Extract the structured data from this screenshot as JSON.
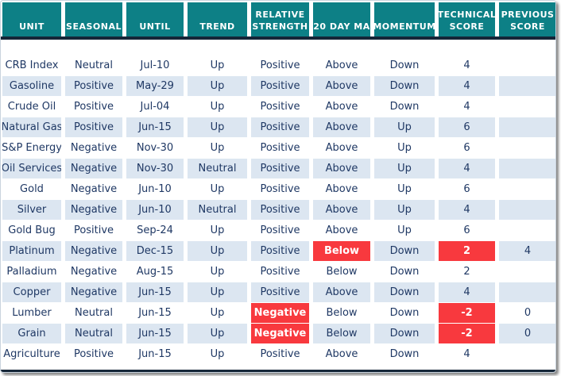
{
  "table": {
    "columns": [
      {
        "key": "unit",
        "label": "UNIT"
      },
      {
        "key": "seasonal",
        "label": "SEASONAL"
      },
      {
        "key": "until",
        "label": "UNTIL"
      },
      {
        "key": "trend",
        "label": "TREND"
      },
      {
        "key": "relative-strength",
        "label": "RELATIVE STRENGTH"
      },
      {
        "key": "20-day-ma",
        "label": "20 DAY MA"
      },
      {
        "key": "momentum",
        "label": "MOMENTUM"
      },
      {
        "key": "technical-score",
        "label": "TECHNICAL SCORE"
      },
      {
        "key": "previous-score",
        "label": "PREVIOUS SCORE"
      }
    ],
    "rows": [
      {
        "cells": [
          "CRB Index",
          "Neutral",
          "Jul-10",
          "Up",
          "Positive",
          "Above",
          "Down",
          "4",
          ""
        ],
        "alerts": []
      },
      {
        "cells": [
          "Gasoline",
          "Positive",
          "May-29",
          "Up",
          "Positive",
          "Above",
          "Down",
          "4",
          ""
        ],
        "alerts": []
      },
      {
        "cells": [
          "Crude Oil",
          "Positive",
          "Jul-04",
          "Up",
          "Positive",
          "Above",
          "Down",
          "4",
          ""
        ],
        "alerts": []
      },
      {
        "cells": [
          "Natural Gas",
          "Positive",
          "Jun-15",
          "Up",
          "Positive",
          "Above",
          "Up",
          "6",
          ""
        ],
        "alerts": []
      },
      {
        "cells": [
          "S&P Energy",
          "Negative",
          "Nov-30",
          "Up",
          "Positive",
          "Above",
          "Up",
          "6",
          ""
        ],
        "alerts": []
      },
      {
        "cells": [
          "Oil Services",
          "Negative",
          "Nov-30",
          "Neutral",
          "Positive",
          "Above",
          "Up",
          "4",
          ""
        ],
        "alerts": []
      },
      {
        "cells": [
          "Gold",
          "Negative",
          "Jun-10",
          "Up",
          "Positive",
          "Above",
          "Up",
          "6",
          ""
        ],
        "alerts": []
      },
      {
        "cells": [
          "Silver",
          "Negative",
          "Jun-10",
          "Neutral",
          "Positive",
          "Above",
          "Up",
          "4",
          ""
        ],
        "alerts": []
      },
      {
        "cells": [
          "Gold Bug",
          "Positive",
          "Sep-24",
          "Up",
          "Positive",
          "Above",
          "Up",
          "6",
          ""
        ],
        "alerts": []
      },
      {
        "cells": [
          "Platinum",
          "Negative",
          "Dec-15",
          "Up",
          "Positive",
          "Below",
          "Down",
          "2",
          "4"
        ],
        "alerts": [
          5,
          7
        ]
      },
      {
        "cells": [
          "Palladium",
          "Negative",
          "Aug-15",
          "Up",
          "Positive",
          "Below",
          "Down",
          "2",
          ""
        ],
        "alerts": []
      },
      {
        "cells": [
          "Copper",
          "Negative",
          "Jun-15",
          "Up",
          "Positive",
          "Above",
          "Down",
          "4",
          ""
        ],
        "alerts": []
      },
      {
        "cells": [
          "Lumber",
          "Neutral",
          "Jun-15",
          "Up",
          "Negative",
          "Below",
          "Down",
          "-2",
          "0"
        ],
        "alerts": [
          4,
          7
        ]
      },
      {
        "cells": [
          "Grain",
          "Neutral",
          "Jun-15",
          "Up",
          "Negative",
          "Below",
          "Down",
          "-2",
          "0"
        ],
        "alerts": [
          4,
          7
        ]
      },
      {
        "cells": [
          "Agriculture",
          "Positive",
          "Jun-15",
          "Up",
          "Positive",
          "Above",
          "Down",
          "4",
          ""
        ],
        "alerts": []
      }
    ]
  },
  "colors": {
    "header_bg": "#0d8086",
    "header_text": "#ffffff",
    "rule": "#152638",
    "stripe_bg": "#dce6f1",
    "cell_text": "#1f3864",
    "alert_bg": "#f8393e",
    "alert_text": "#ffffff",
    "frame_border": "#c9d3de"
  }
}
